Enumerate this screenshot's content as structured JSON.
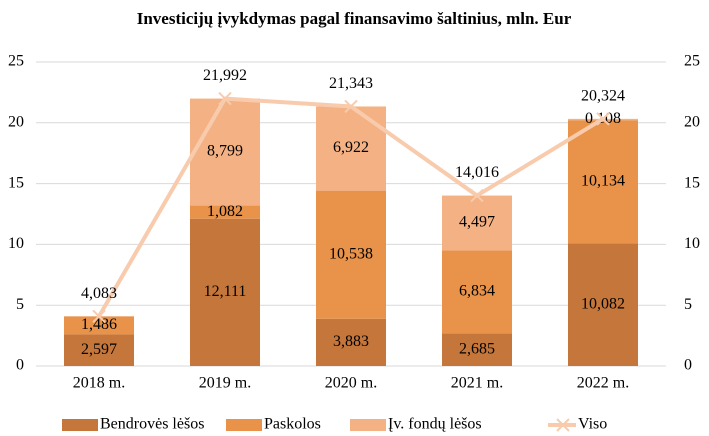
{
  "chart_data": {
    "type": "bar",
    "stacked": true,
    "title": "Investicijų įvykdymas pagal finansavimo šaltinius, mln. Eur",
    "categories": [
      "2018 m.",
      "2019 m.",
      "2020 m.",
      "2021 m.",
      "2022 m."
    ],
    "ylim": [
      0,
      25
    ],
    "yticks": [
      0,
      5,
      10,
      15,
      20,
      25
    ],
    "y2lim": [
      0,
      25
    ],
    "y2ticks": [
      0,
      5,
      10,
      15,
      20,
      25
    ],
    "grid": true,
    "legend": "bottom",
    "series": [
      {
        "name": "Bendrovės lėšos",
        "color": "#c5763a",
        "values": [
          2.597,
          12.111,
          3.883,
          2.685,
          10.082
        ],
        "value_labels": [
          "2,597",
          "12,111",
          "3,883",
          "2,685",
          "10,082"
        ]
      },
      {
        "name": "Paskolos",
        "color": "#e8924a",
        "values": [
          1.486,
          1.082,
          10.538,
          6.834,
          10.134
        ],
        "value_labels": [
          "1,486",
          "1,082",
          "10,538",
          "6,834",
          "10,134"
        ]
      },
      {
        "name": "Įv. fondų lėšos",
        "color": "#f4b183",
        "values": [
          null,
          8.799,
          6.922,
          4.497,
          0.108
        ],
        "value_labels": [
          null,
          "8,799",
          "6,922",
          "4,497",
          "0,108"
        ]
      },
      {
        "name": "Viso",
        "color": "#f8cbad",
        "type": "line",
        "axis": "y2",
        "values": [
          4.083,
          21.992,
          21.343,
          14.016,
          20.324
        ],
        "value_labels": [
          "4,083",
          "21,992",
          "21,343",
          "14,016",
          "20,324"
        ]
      }
    ]
  }
}
